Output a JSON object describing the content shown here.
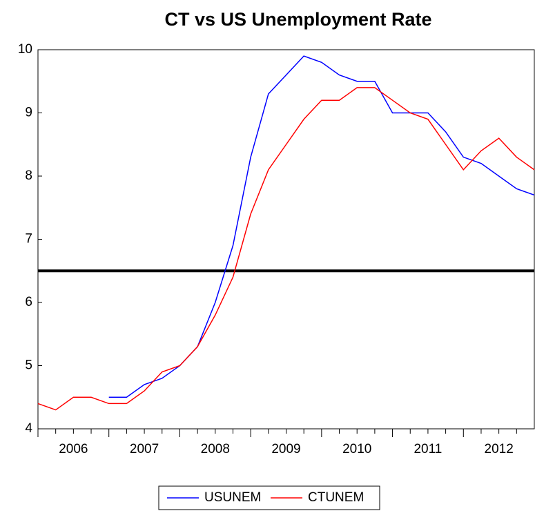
{
  "chart_data": {
    "type": "line",
    "title": "CT vs US Unemployment Rate",
    "period_labels": [
      "2006",
      "2007",
      "2008",
      "2009",
      "2010",
      "2011",
      "2012"
    ],
    "series": [
      {
        "name": "USUNEM",
        "color": "#0000ff",
        "values": [
          null,
          null,
          null,
          null,
          4.5,
          4.5,
          4.7,
          4.8,
          5.0,
          5.3,
          6.0,
          6.9,
          8.3,
          9.3,
          9.6,
          9.9,
          9.8,
          9.6,
          9.5,
          9.5,
          9.0,
          9.0,
          9.0,
          8.7,
          8.3,
          8.2,
          8.0,
          7.8,
          7.7
        ]
      },
      {
        "name": "CTUNEM",
        "color": "#ff0000",
        "values": [
          4.4,
          4.3,
          4.5,
          4.5,
          4.4,
          4.4,
          4.6,
          4.9,
          5.0,
          5.3,
          5.8,
          6.4,
          7.4,
          8.1,
          8.5,
          8.9,
          9.2,
          9.2,
          9.4,
          9.4,
          9.2,
          9.0,
          8.9,
          8.5,
          8.1,
          8.4,
          8.6,
          8.3,
          8.1
        ]
      }
    ],
    "reference_line": 6.5,
    "ylim": [
      4,
      10
    ],
    "yticks": [
      4,
      5,
      6,
      7,
      8,
      9,
      10
    ],
    "legend": "bottom"
  }
}
